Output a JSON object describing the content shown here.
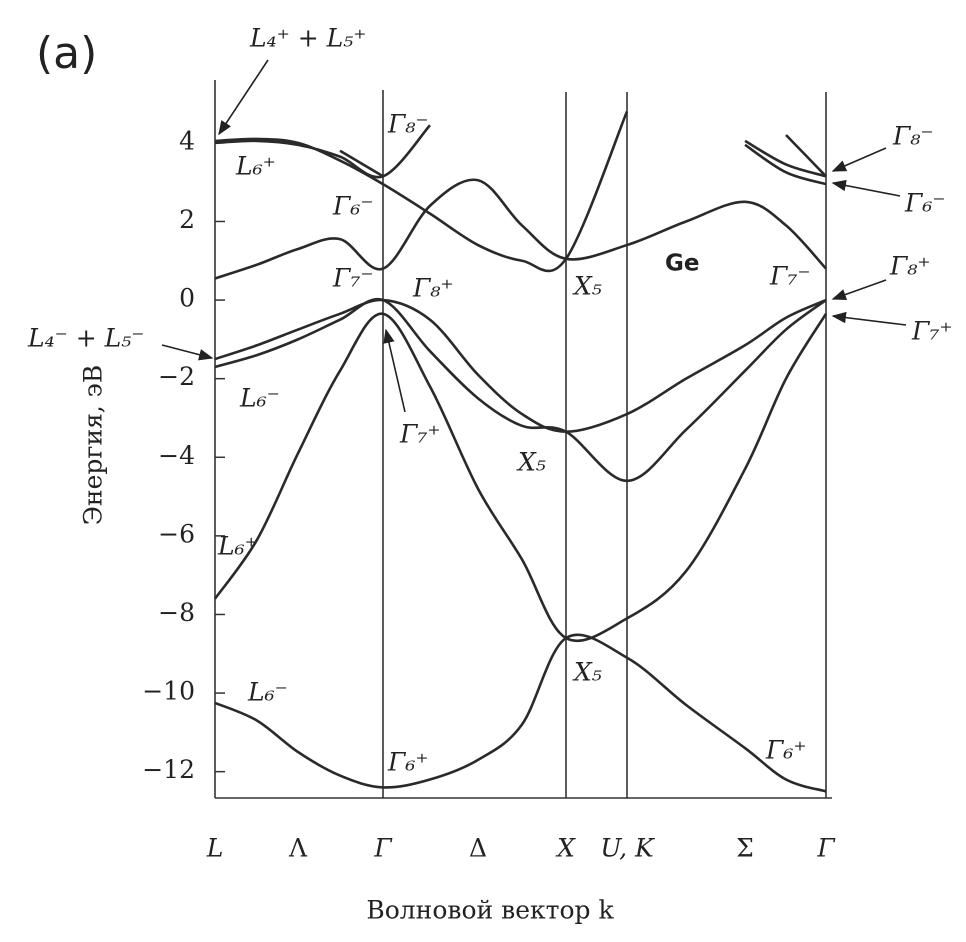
{
  "chart_data": {
    "type": "line",
    "panel_label": "(a)",
    "xlabel": "Волновой вектор k",
    "ylabel": "Энергия, эВ",
    "categories": [
      "L",
      null,
      "Λ",
      null,
      "Γ",
      null,
      "Δ",
      null,
      "X",
      "U, K",
      null,
      "Σ",
      null,
      "Γ"
    ],
    "ylim": [
      -12.67,
      5.6
    ],
    "yticks": [
      4,
      2,
      0,
      {
        "value": -2,
        "label": "−2"
      },
      {
        "value": -4,
        "label": "−4"
      },
      {
        "value": -6,
        "label": "−6"
      },
      {
        "value": -8,
        "label": "−8"
      },
      {
        "value": -10,
        "label": "−10"
      },
      {
        "value": -12,
        "label": "−12"
      }
    ],
    "grid": false,
    "color": "#2a2a2a",
    "series": [
      {
        "values": [
          -10.25,
          -10.7,
          -11.5,
          -12.1,
          -12.4,
          -12.2,
          -11.7,
          -10.8,
          -8.6,
          -9.1,
          -10.3,
          -11.4,
          -12.2,
          -12.5
        ]
      },
      {
        "values": [
          -7.6,
          -6.1,
          -3.9,
          -1.8,
          -0.35,
          -2.2,
          -4.8,
          -6.6,
          -8.6,
          -8.1,
          -6.9,
          -4.3,
          -2.0,
          -0.35
        ]
      },
      {
        "values": [
          -1.7,
          -1.4,
          -1.0,
          -0.5,
          0,
          -1.3,
          -2.5,
          -3.2,
          -3.35,
          -4.6,
          -3.3,
          -1.8,
          -0.75,
          0
        ]
      },
      {
        "values": [
          -1.5,
          -1.15,
          -0.75,
          -0.35,
          0,
          -0.5,
          -1.9,
          -2.9,
          -3.35,
          -2.9,
          -2.0,
          -1.15,
          -0.45,
          0
        ]
      },
      {
        "values": [
          0.55,
          0.9,
          1.3,
          1.55,
          0.8,
          2.4,
          3.05,
          1.9,
          1.05,
          1.4,
          2.0,
          2.5,
          1.9,
          0.8
        ]
      },
      {
        "values": [
          4.05,
          4.1,
          4.0,
          3.55,
          2.95,
          2.2,
          1.4,
          1.0,
          1.05,
          4.8,
          null,
          null,
          null,
          null
        ]
      },
      {
        "values": [
          4.0,
          4.05,
          3.95,
          3.65,
          3.15,
          4.45,
          null,
          null,
          null,
          null,
          null,
          null,
          null,
          null
        ]
      },
      {
        "values": [
          null,
          null,
          null,
          3.8,
          3.15,
          null,
          null,
          null,
          null,
          null,
          null,
          null,
          null,
          null
        ]
      },
      {
        "values": [
          null,
          null,
          null,
          null,
          null,
          null,
          null,
          null,
          null,
          null,
          null,
          4.05,
          3.45,
          3.15
        ]
      },
      {
        "values": [
          null,
          null,
          null,
          null,
          null,
          null,
          null,
          null,
          null,
          null,
          null,
          3.95,
          3.25,
          2.95
        ]
      },
      {
        "values": [
          null,
          null,
          null,
          null,
          null,
          null,
          null,
          null,
          null,
          null,
          null,
          null,
          4.2,
          3.15
        ]
      }
    ],
    "annotations": [
      "L₄⁺ + L₅⁺",
      "L₆⁺",
      "Γ₈⁻",
      "Γ₆⁻",
      "Γ₇⁻",
      "Γ₈⁺",
      "L₄⁻ + L₅⁻",
      "L₆⁻",
      "Γ₇⁺",
      "X₅",
      "X₅",
      "Ge",
      "Γ₇⁻",
      "L₆⁺",
      "L₆⁻",
      "X₅",
      "Γ₆⁺",
      "Γ₆⁺",
      "Γ₈⁻",
      "Γ₆⁻",
      "Γ₈⁺",
      "Γ₇⁺"
    ]
  }
}
